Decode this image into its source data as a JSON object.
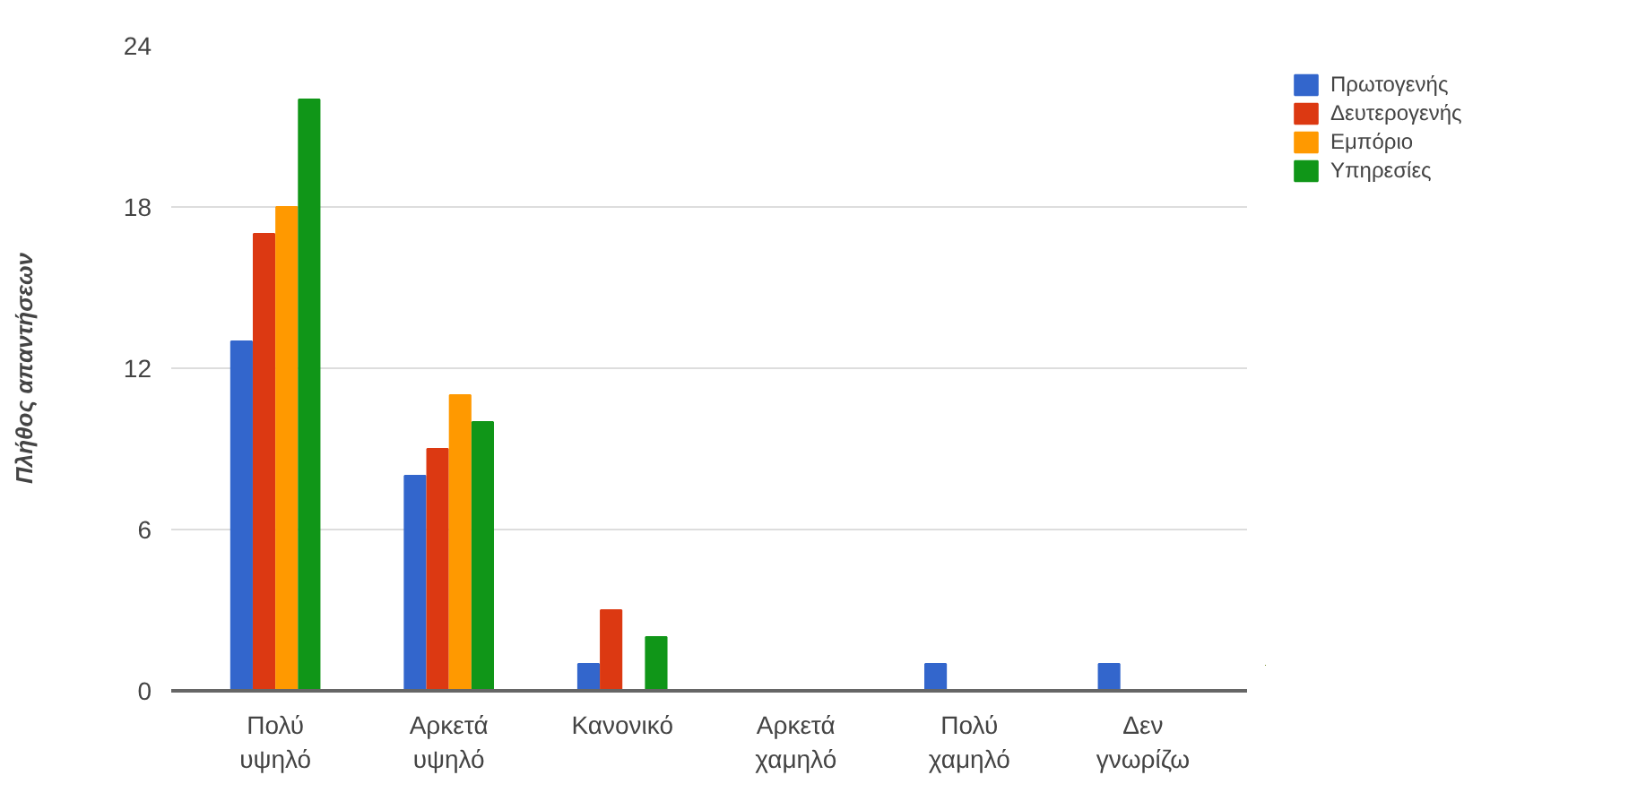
{
  "chart_data": {
    "type": "bar",
    "ylabel": "Πλήθος απαντήσεων",
    "categories": [
      "Πολύ υψηλό",
      "Αρκετά υψηλό",
      "Κανονικό",
      "Αρκετά χαμηλό",
      "Πολύ χαμηλό",
      "Δεν γνωρίζω"
    ],
    "series": [
      {
        "name": "Πρωτογενής",
        "color": "#3366cc",
        "values": [
          13,
          8,
          1,
          0,
          1,
          1
        ]
      },
      {
        "name": "Δευτερογενής",
        "color": "#dc3912",
        "values": [
          17,
          9,
          3,
          0,
          0,
          0
        ]
      },
      {
        "name": "Εμπόριο",
        "color": "#ff9900",
        "values": [
          18,
          11,
          0,
          0,
          0,
          0
        ]
      },
      {
        "name": "Υπηρεσίες",
        "color": "#109618",
        "values": [
          22,
          10,
          2,
          0,
          0,
          0
        ]
      }
    ],
    "ylim": [
      0,
      24
    ],
    "yticks": [
      0,
      6,
      12,
      18,
      24
    ],
    "grid": "y",
    "legend": "top right"
  }
}
